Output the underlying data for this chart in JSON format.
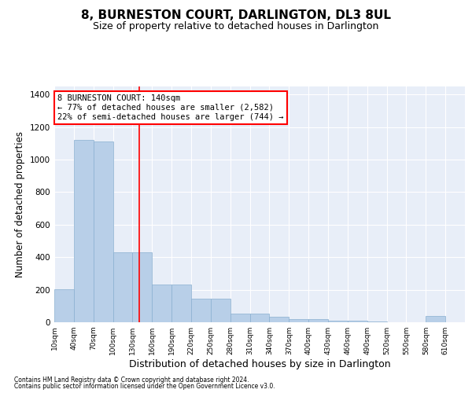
{
  "title": "8, BURNESTON COURT, DARLINGTON, DL3 8UL",
  "subtitle": "Size of property relative to detached houses in Darlington",
  "xlabel": "Distribution of detached houses by size in Darlington",
  "ylabel": "Number of detached properties",
  "footnote1": "Contains HM Land Registry data © Crown copyright and database right 2024.",
  "footnote2": "Contains public sector information licensed under the Open Government Licence v3.0.",
  "annotation_line1": "8 BURNESTON COURT: 140sqm",
  "annotation_line2": "← 77% of detached houses are smaller (2,582)",
  "annotation_line3": "22% of semi-detached houses are larger (744) →",
  "redline_x": 140,
  "bar_color": "#b8cfe8",
  "bar_edge_color": "#8ab0d0",
  "background_color": "#e8eef8",
  "grid_color": "#ffffff",
  "bin_starts": [
    10,
    40,
    70,
    100,
    130,
    160,
    190,
    220,
    250,
    280,
    310,
    340,
    370,
    400,
    430,
    460,
    490,
    520,
    550,
    580
  ],
  "bar_heights": [
    205,
    1120,
    1110,
    430,
    430,
    230,
    230,
    145,
    145,
    55,
    55,
    35,
    20,
    20,
    10,
    10,
    5,
    0,
    0,
    40
  ],
  "bin_width": 30,
  "bin_labels": [
    "10sqm",
    "40sqm",
    "70sqm",
    "100sqm",
    "130sqm",
    "160sqm",
    "190sqm",
    "220sqm",
    "250sqm",
    "280sqm",
    "310sqm",
    "340sqm",
    "370sqm",
    "400sqm",
    "430sqm",
    "460sqm",
    "490sqm",
    "520sqm",
    "550sqm",
    "580sqm",
    "610sqm"
  ],
  "xtick_positions": [
    10,
    40,
    70,
    100,
    130,
    160,
    190,
    220,
    250,
    280,
    310,
    340,
    370,
    400,
    430,
    460,
    490,
    520,
    550,
    580,
    610
  ],
  "ylim": [
    0,
    1450
  ],
  "xlim": [
    10,
    640
  ],
  "yticks": [
    0,
    200,
    400,
    600,
    800,
    1000,
    1200,
    1400
  ]
}
